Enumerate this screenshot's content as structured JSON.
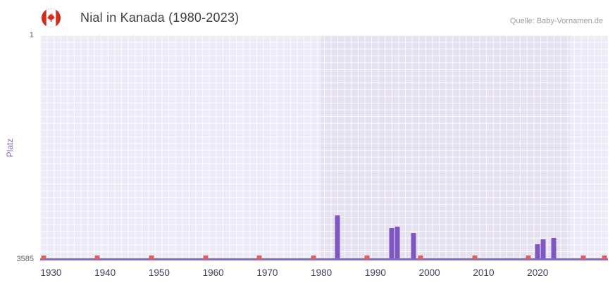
{
  "header": {
    "title": "Nial in Kanada (1980-2023)",
    "source": "Quelle: Baby-Vornamen.de",
    "flag_icon": "canada-flag-icon"
  },
  "chart_data": {
    "type": "bar",
    "title": "Nial in Kanada (1980-2023)",
    "xlabel": "",
    "ylabel": "Platz",
    "legend": "none",
    "grid": true,
    "y_axis": {
      "inverted": true,
      "min": 1,
      "max": 3585,
      "tick_labels": [
        "1",
        "3585"
      ]
    },
    "x_axis": {
      "min": 1928,
      "max": 2033,
      "tick_years": [
        1930,
        1940,
        1950,
        1960,
        1970,
        1980,
        1990,
        2000,
        2010,
        2020
      ]
    },
    "highlight_band": {
      "from_year": 1980,
      "to_year": 2026,
      "color": "#e5e1f0",
      "outside_color": "#edebf7"
    },
    "series": [
      {
        "name": "Platz",
        "color": "#7e57c2",
        "points": [
          {
            "year": 1983,
            "rank": 2890
          },
          {
            "year": 1993,
            "rank": 3100
          },
          {
            "year": 1994,
            "rank": 3080
          },
          {
            "year": 1997,
            "rank": 3180
          },
          {
            "year": 2020,
            "rank": 3360
          },
          {
            "year": 2021,
            "rank": 3280
          },
          {
            "year": 2023,
            "rank": 3260
          }
        ]
      }
    ],
    "baseline_markers": {
      "color": "#e05e5e",
      "positions_pct": [
        0.6,
        10.1,
        19.6,
        29.1,
        38.6,
        48.1,
        57.6,
        67.0,
        76.6,
        86.0,
        95.6,
        99.4
      ]
    }
  }
}
